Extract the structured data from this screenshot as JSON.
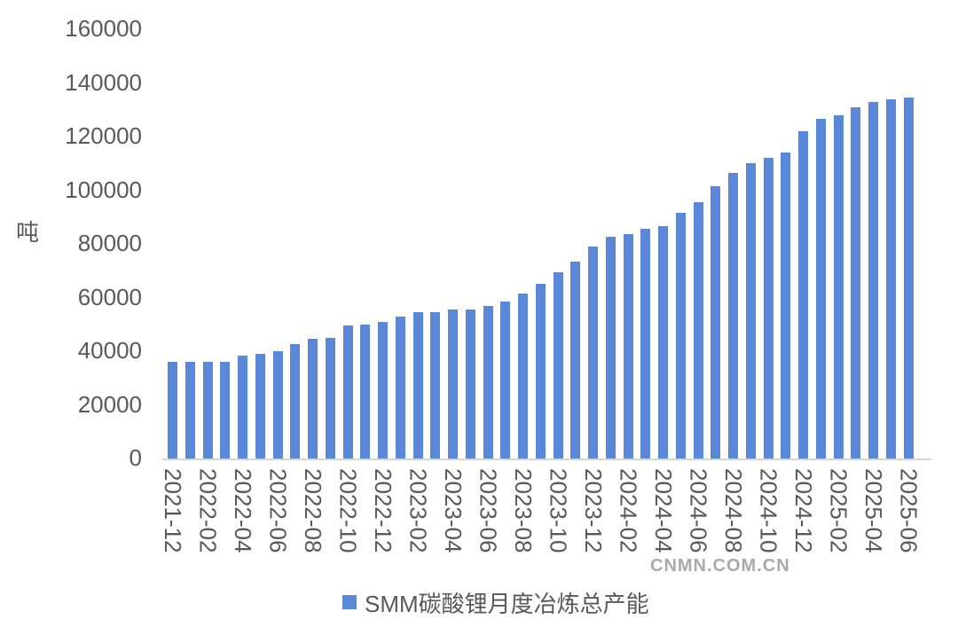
{
  "colors": {
    "bar": "#5B87D8",
    "text": "#595959",
    "axis_line": "#D8D4D4",
    "watermark": "#A9A9A9",
    "background": "#FFFFFF"
  },
  "watermark": {
    "text": "CNMN.COM.CN"
  },
  "legend": {
    "label": "SMM碳酸锂月度冶炼总产能",
    "marker": "square"
  },
  "chart_data": {
    "type": "bar",
    "title": "",
    "xlabel": "",
    "ylabel": "吨",
    "ylim": [
      0,
      160000
    ],
    "ytick_step": 20000,
    "ytick_labels": [
      "0",
      "20000",
      "40000",
      "60000",
      "80000",
      "100000",
      "120000",
      "140000",
      "160000"
    ],
    "grid": false,
    "legend_position": "bottom-center",
    "legend_entries": [
      "SMM碳酸锂月度冶炼总产能"
    ],
    "xtick_every": 2,
    "x": [
      "2021-12",
      "2022-01",
      "2022-02",
      "2022-03",
      "2022-04",
      "2022-05",
      "2022-06",
      "2022-07",
      "2022-08",
      "2022-09",
      "2022-10",
      "2022-11",
      "2022-12",
      "2023-01",
      "2023-02",
      "2023-03",
      "2023-04",
      "2023-05",
      "2023-06",
      "2023-07",
      "2023-08",
      "2023-09",
      "2023-10",
      "2023-11",
      "2023-12",
      "2024-01",
      "2024-02",
      "2024-03",
      "2024-04",
      "2024-05",
      "2024-06",
      "2024-07",
      "2024-08",
      "2024-09",
      "2024-10",
      "2024-11",
      "2024-12",
      "2025-01",
      "2025-02",
      "2025-03",
      "2025-04",
      "2025-05",
      "2025-06"
    ],
    "values": [
      36000,
      36000,
      36000,
      36000,
      38500,
      39000,
      40000,
      42500,
      44500,
      45000,
      49500,
      50000,
      51000,
      53000,
      54500,
      54500,
      55500,
      55500,
      57000,
      58500,
      61500,
      65000,
      69500,
      73500,
      79000,
      82500,
      83500,
      85500,
      86500,
      91500,
      95500,
      101500,
      106500,
      110000,
      112000,
      114000,
      122000,
      126500,
      128000,
      131000,
      133000,
      134000,
      134500
    ]
  }
}
